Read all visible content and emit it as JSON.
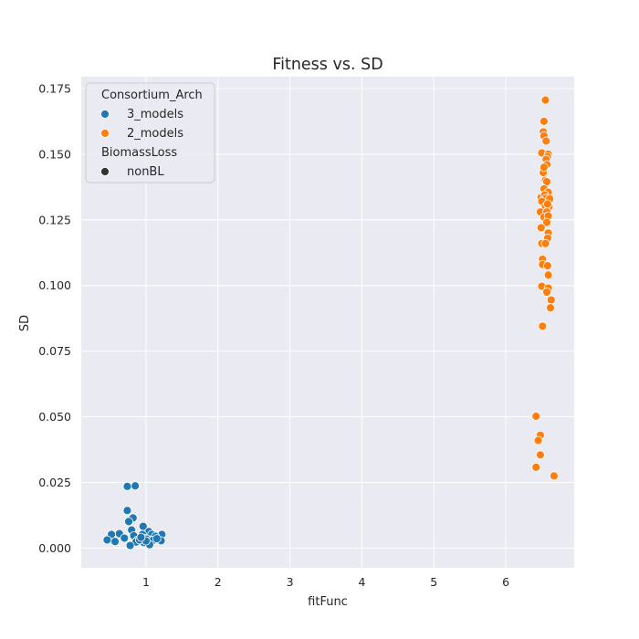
{
  "chart_data": {
    "type": "scatter",
    "title": "Fitness vs. SD",
    "xlabel": "fitFunc",
    "ylabel": "SD",
    "xlim": [
      0.1,
      6.95
    ],
    "ylim": [
      -0.0075,
      0.1795
    ],
    "xticks": [
      1,
      2,
      3,
      4,
      5,
      6
    ],
    "yticks": [
      0.0,
      0.025,
      0.05,
      0.075,
      0.1,
      0.125,
      0.15,
      0.175
    ],
    "ytick_labels": [
      "0.000",
      "0.025",
      "0.050",
      "0.075",
      "0.100",
      "0.125",
      "0.150",
      "0.175"
    ],
    "grid": true,
    "legend": {
      "placement": "top-left",
      "hue_title": "Consortium_Arch",
      "style_title": "BiomassLoss",
      "style_entry": "nonBL"
    },
    "series": [
      {
        "name": "3_models",
        "color": "#1f77b4",
        "points": [
          [
            0.74,
            0.0235
          ],
          [
            0.85,
            0.0237
          ],
          [
            0.74,
            0.0143
          ],
          [
            0.82,
            0.0115
          ],
          [
            0.76,
            0.0101
          ],
          [
            0.96,
            0.0083
          ],
          [
            0.8,
            0.0069
          ],
          [
            1.04,
            0.0063
          ],
          [
            0.63,
            0.0055
          ],
          [
            0.52,
            0.0052
          ],
          [
            0.95,
            0.0052
          ],
          [
            1.08,
            0.0052
          ],
          [
            1.22,
            0.0052
          ],
          [
            0.83,
            0.0047
          ],
          [
            1.13,
            0.0045
          ],
          [
            0.7,
            0.0038
          ],
          [
            0.98,
            0.0037
          ],
          [
            1.02,
            0.0034
          ],
          [
            0.46,
            0.0031
          ],
          [
            0.88,
            0.003
          ],
          [
            1.07,
            0.003
          ],
          [
            1.1,
            0.003
          ],
          [
            1.21,
            0.0028
          ],
          [
            0.57,
            0.0025
          ],
          [
            0.86,
            0.0023
          ],
          [
            0.97,
            0.0021
          ],
          [
            1.05,
            0.0013
          ],
          [
            0.78,
            0.001
          ],
          [
            0.91,
            0.0031
          ],
          [
            1.0,
            0.0027
          ],
          [
            1.15,
            0.0036
          ],
          [
            0.93,
            0.0041
          ]
        ]
      },
      {
        "name": "2_models",
        "color": "#ff7f0e",
        "points": [
          [
            6.55,
            0.1706
          ],
          [
            6.53,
            0.1625
          ],
          [
            6.52,
            0.1585
          ],
          [
            6.53,
            0.157
          ],
          [
            6.56,
            0.155
          ],
          [
            6.5,
            0.1505
          ],
          [
            6.59,
            0.15
          ],
          [
            6.58,
            0.149
          ],
          [
            6.56,
            0.148
          ],
          [
            6.57,
            0.146
          ],
          [
            6.52,
            0.143
          ],
          [
            6.53,
            0.145
          ],
          [
            6.55,
            0.14
          ],
          [
            6.57,
            0.1395
          ],
          [
            6.53,
            0.1368
          ],
          [
            6.59,
            0.1355
          ],
          [
            6.49,
            0.1335
          ],
          [
            6.54,
            0.1345
          ],
          [
            6.56,
            0.1332
          ],
          [
            6.61,
            0.133
          ],
          [
            6.5,
            0.132
          ],
          [
            6.55,
            0.13
          ],
          [
            6.6,
            0.13
          ],
          [
            6.58,
            0.131
          ],
          [
            6.48,
            0.128
          ],
          [
            6.57,
            0.128
          ],
          [
            6.53,
            0.126
          ],
          [
            6.59,
            0.1265
          ],
          [
            6.57,
            0.124
          ],
          [
            6.49,
            0.122
          ],
          [
            6.59,
            0.12
          ],
          [
            6.58,
            0.118
          ],
          [
            6.5,
            0.116
          ],
          [
            6.55,
            0.116
          ],
          [
            6.51,
            0.11
          ],
          [
            6.51,
            0.108
          ],
          [
            6.58,
            0.1075
          ],
          [
            6.59,
            0.104
          ],
          [
            6.5,
            0.0997
          ],
          [
            6.59,
            0.099
          ],
          [
            6.57,
            0.0975
          ],
          [
            6.63,
            0.0945
          ],
          [
            6.62,
            0.0915
          ],
          [
            6.51,
            0.0845
          ],
          [
            6.42,
            0.0502
          ],
          [
            6.48,
            0.043
          ],
          [
            6.45,
            0.041
          ],
          [
            6.48,
            0.0355
          ],
          [
            6.42,
            0.0308
          ],
          [
            6.67,
            0.0275
          ]
        ]
      }
    ]
  }
}
